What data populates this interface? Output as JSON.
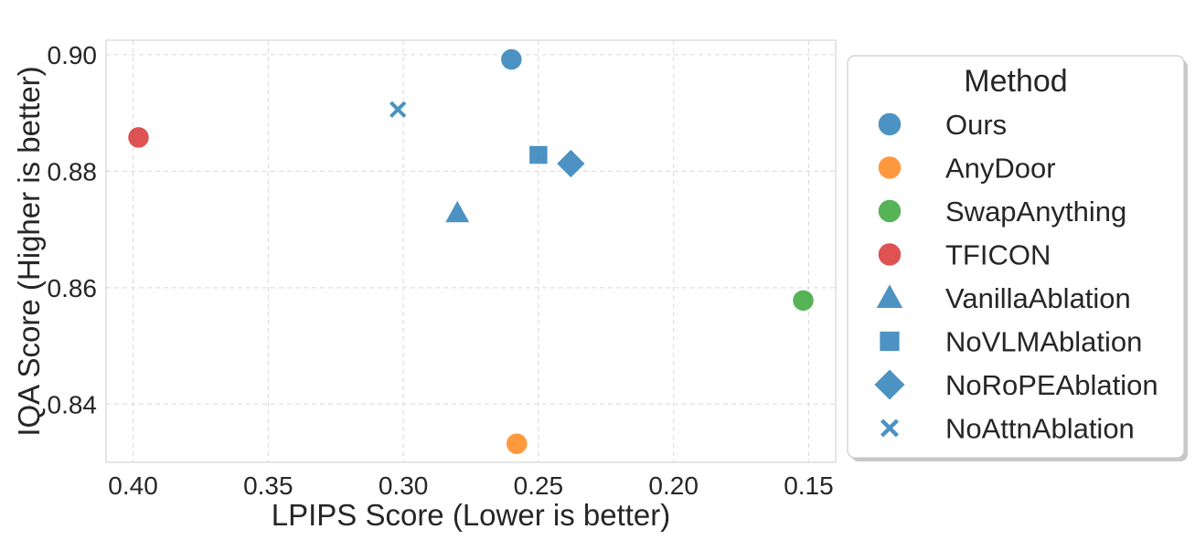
{
  "chart_data": {
    "type": "scatter",
    "xlabel": "LPIPS Score (Lower is better)",
    "ylabel": "IQA Score (Higher is better)",
    "xlim": [
      0.41,
      0.14
    ],
    "ylim": [
      0.83,
      0.9025
    ],
    "x_inverted": true,
    "xticks": [
      0.4,
      0.35,
      0.3,
      0.25,
      0.2,
      0.15
    ],
    "xtick_labels": [
      "0.40",
      "0.35",
      "0.30",
      "0.25",
      "0.20",
      "0.15"
    ],
    "yticks": [
      0.84,
      0.86,
      0.88,
      0.9
    ],
    "ytick_labels": [
      "0.84",
      "0.86",
      "0.88",
      "0.90"
    ],
    "grid": true,
    "legend_position": "right, outside plot",
    "legend_title": "Method",
    "series": [
      {
        "name": "Ours",
        "marker": "circle",
        "color": "#1f77b4",
        "x": 0.26,
        "y": 0.8992
      },
      {
        "name": "AnyDoor",
        "marker": "circle",
        "color": "#ff7f0e",
        "x": 0.258,
        "y": 0.8332
      },
      {
        "name": "SwapAnything",
        "marker": "circle",
        "color": "#2ca02c",
        "x": 0.152,
        "y": 0.8578
      },
      {
        "name": "TFICON",
        "marker": "circle",
        "color": "#d62728",
        "x": 0.398,
        "y": 0.8858
      },
      {
        "name": "VanillaAblation",
        "marker": "triangle",
        "color": "#1f77b4",
        "x": 0.28,
        "y": 0.8728
      },
      {
        "name": "NoVLMAblation",
        "marker": "square",
        "color": "#1f77b4",
        "x": 0.25,
        "y": 0.8828
      },
      {
        "name": "NoRoPEAblation",
        "marker": "diamond",
        "color": "#1f77b4",
        "x": 0.238,
        "y": 0.8813
      },
      {
        "name": "NoAttnAblation",
        "marker": "x",
        "color": "#1f77b4",
        "x": 0.302,
        "y": 0.8906
      }
    ]
  }
}
